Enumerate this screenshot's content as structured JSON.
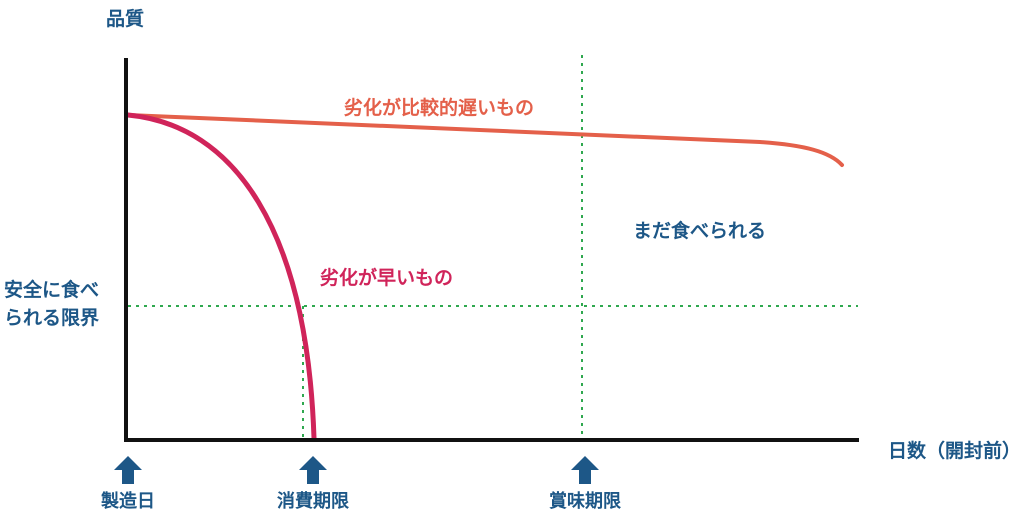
{
  "axes": {
    "y_title": "品質",
    "x_title": "日数（開封前）"
  },
  "safety_limit": {
    "line1": "安全に食べ",
    "line2": "られる限界"
  },
  "region_label": "まだ食べられる",
  "curves": {
    "slow": {
      "label": "劣化が比較的遅いもの",
      "color": "#e4604a"
    },
    "fast": {
      "label": "劣化が早いもの",
      "color": "#d0245a"
    }
  },
  "markers": {
    "manufacture": "製造日",
    "use_by": "消費期限",
    "best_before": "賞味期限"
  },
  "colors": {
    "axis": "#111111",
    "guide": "#2fa84f",
    "marker": "#1d5787"
  }
}
